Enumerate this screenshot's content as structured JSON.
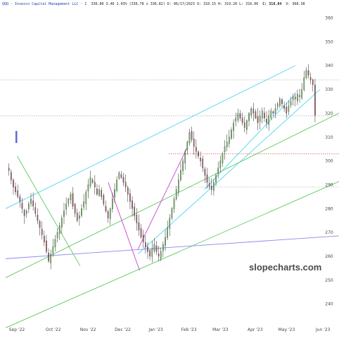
{
  "header": {
    "title": "QQQ - Invesco Capital Management LLC - I",
    "quote": "336.80 3.46 1.03% (336.78 x 336.82) D: 06/17/2023 O: 318.15 H: 319.20 L: 316.06",
    "close": "C: 318.84",
    "vol": "V: 368.38"
  },
  "watermark": "slopecharts.com",
  "chart_data": {
    "type": "candlestick",
    "ylim": [
      234,
      364
    ],
    "yticks": [
      240,
      250,
      260,
      270,
      280,
      290,
      300,
      310,
      320,
      330,
      340,
      350,
      360
    ],
    "ytick_labels": [
      "240",
      "250",
      "260",
      "270",
      "280",
      "290",
      "300",
      "310",
      "320",
      "330",
      "340",
      "350",
      "360"
    ],
    "xticks": [
      {
        "label": "Sep '22",
        "t": 0
      },
      {
        "label": "Oct '22",
        "t": 22
      },
      {
        "label": "Nov '22",
        "t": 43
      },
      {
        "label": "Dec '22",
        "t": 64
      },
      {
        "label": "Jan '23",
        "t": 84
      },
      {
        "label": "Feb '23",
        "t": 104
      },
      {
        "label": "Mar '23",
        "t": 123
      },
      {
        "label": "Apr '23",
        "t": 144
      },
      {
        "label": "May '23",
        "t": 163
      },
      {
        "label": "Jun '23",
        "t": 185
      }
    ],
    "closes": [
      296,
      292,
      289,
      287,
      285,
      283,
      280,
      277,
      279,
      282,
      284,
      281,
      278,
      275,
      272,
      269,
      266,
      262,
      258,
      261,
      264,
      267,
      270,
      273,
      276,
      279,
      282,
      284,
      286,
      281,
      278,
      275,
      277,
      280,
      283,
      287,
      290,
      293,
      291,
      289,
      286,
      288,
      285,
      282,
      279,
      276,
      280,
      284,
      288,
      292,
      295,
      293,
      291,
      289,
      286,
      283,
      280,
      277,
      274,
      271,
      268,
      266,
      264,
      262,
      260,
      263,
      265,
      262,
      260,
      262,
      265,
      268,
      272,
      276,
      280,
      284,
      288,
      292,
      296,
      300,
      304,
      308,
      312,
      309,
      306,
      304,
      302,
      300,
      297,
      294,
      291,
      289,
      288,
      291,
      294,
      297,
      300,
      303,
      306,
      308,
      310,
      313,
      316,
      318,
      320,
      318,
      316,
      314,
      317,
      320,
      322,
      320,
      318,
      316,
      319,
      321,
      318,
      316,
      319,
      321,
      320,
      322,
      324,
      326,
      324,
      322,
      320,
      323,
      325,
      327,
      326,
      328,
      327,
      330,
      335,
      338,
      336,
      334,
      332,
      319
    ],
    "trendlines": [
      {
        "color": "#4fd6f0",
        "t1": 0,
        "y1": 280,
        "t2": 175,
        "y2": 340
      },
      {
        "color": "#4fd6f0",
        "t1": 80,
        "y1": 261,
        "t2": 190,
        "y2": 330
      },
      {
        "color": "#4fd6f0",
        "t1": 120,
        "y1": 288,
        "t2": 175,
        "y2": 328
      },
      {
        "color": "#5cc85c",
        "t1": 0,
        "y1": 251,
        "t2": 210,
        "y2": 323
      },
      {
        "color": "#5cc85c",
        "t1": 0,
        "y1": 230,
        "t2": 210,
        "y2": 294
      },
      {
        "color": "#8a8aee",
        "t1": 0,
        "y1": 259,
        "t2": 210,
        "y2": 269
      },
      {
        "color": "#5cc85c",
        "t1": 7,
        "y1": 302,
        "t2": 45,
        "y2": 256
      },
      {
        "color": "#cc44cc",
        "t1": 62,
        "y1": 291,
        "t2": 81,
        "y2": 254
      },
      {
        "color": "#cc44cc",
        "t1": 80,
        "y1": 263,
        "t2": 110,
        "y2": 306
      }
    ]
  }
}
